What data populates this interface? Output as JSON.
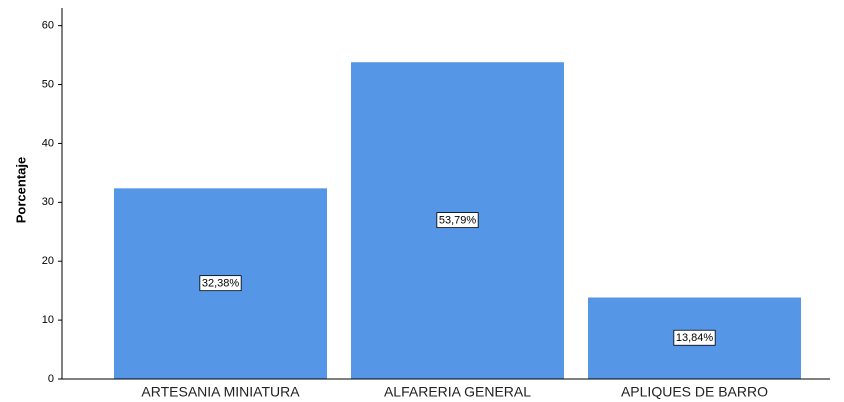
{
  "chart_data": {
    "type": "bar",
    "y_label": "Porcentaje",
    "categories": [
      "ARTESANIA MINIATURA",
      "ALFARERIA GENERAL",
      "APLIQUES DE BARRO"
    ],
    "values": [
      32.38,
      53.79,
      13.84
    ],
    "value_labels": [
      "32,38%",
      "53,79%",
      "13,84%"
    ],
    "color": "#5596e6",
    "ylim": [
      0,
      63
    ],
    "yticks": [
      0,
      10,
      20,
      30,
      40,
      50,
      60
    ],
    "grid": false
  }
}
